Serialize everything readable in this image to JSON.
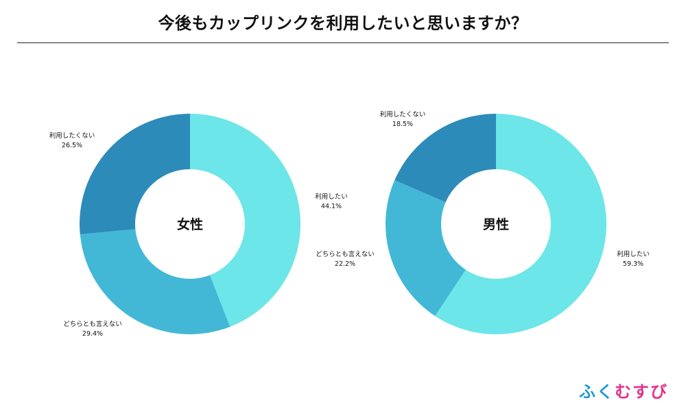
{
  "title": "今後もカップリンクを利用したいと思いますか？",
  "logo": {
    "parts": [
      {
        "text": "ふく",
        "color": "#1e9ad6"
      },
      {
        "text": "むすび",
        "color": "#e5318b"
      }
    ]
  },
  "colors": {
    "利用したい": "#6ce6e8",
    "どちらとも言えない": "#43b8d6",
    "利用したくない": "#2d8bba"
  },
  "chart_data": [
    {
      "type": "pie",
      "center_label": "女性",
      "slices": [
        {
          "label": "利用したい",
          "value": 44.1,
          "value_label": "44.1%"
        },
        {
          "label": "どちらとも言えない",
          "value": 29.4,
          "value_label": "29.4%"
        },
        {
          "label": "利用したくない",
          "value": 26.5,
          "value_label": "26.5%"
        }
      ]
    },
    {
      "type": "pie",
      "center_label": "男性",
      "slices": [
        {
          "label": "利用したい",
          "value": 59.3,
          "value_label": "59.3%"
        },
        {
          "label": "どちらとも言えない",
          "value": 22.2,
          "value_label": "22.2%"
        },
        {
          "label": "利用したくない",
          "value": 18.5,
          "value_label": "18.5%"
        }
      ]
    }
  ]
}
